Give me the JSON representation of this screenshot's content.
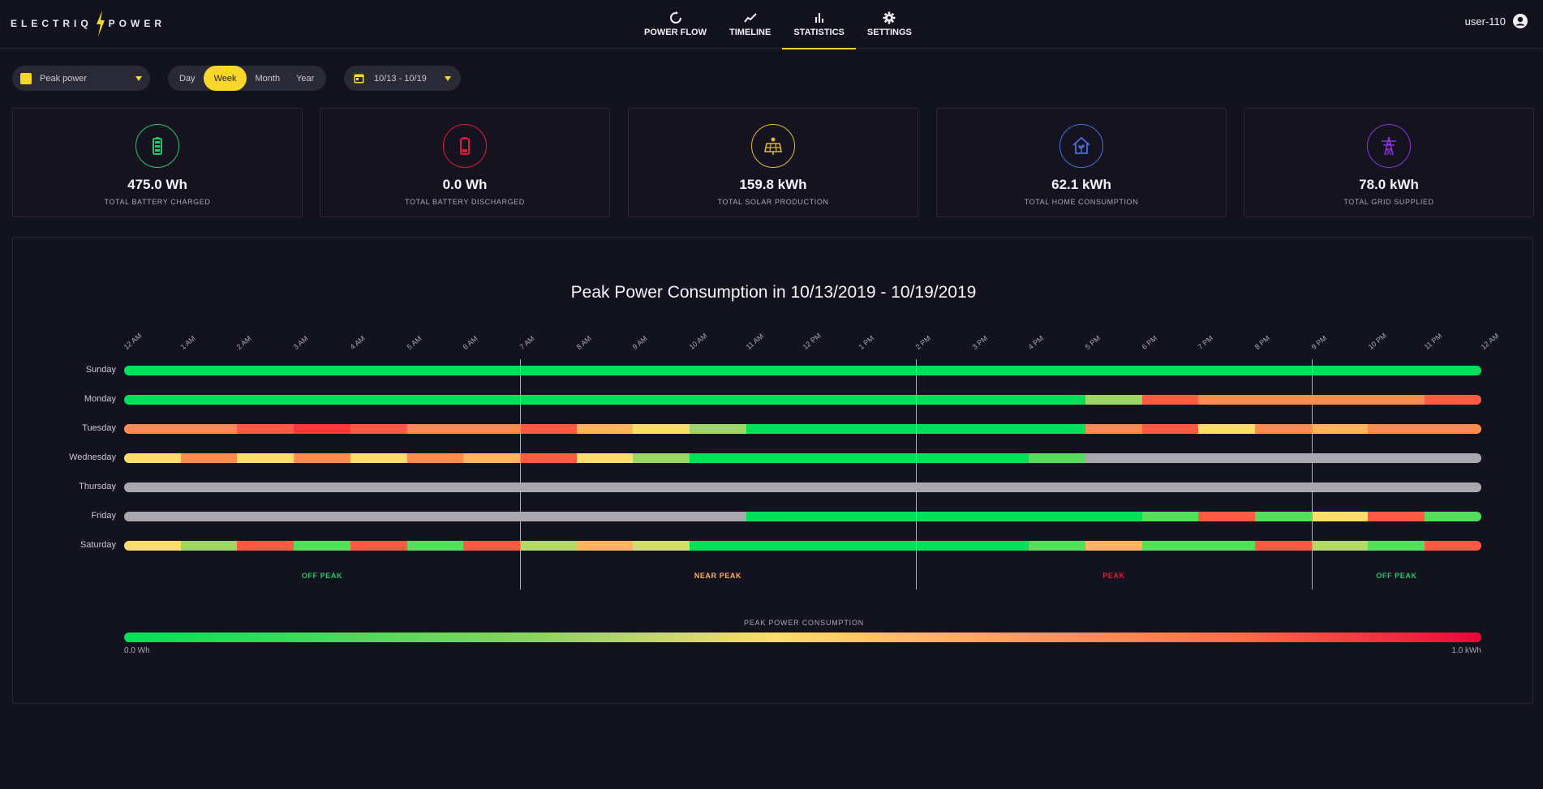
{
  "header": {
    "logo_text": [
      "ELECTRIQ",
      "POWER"
    ],
    "nav": [
      {
        "label": "POWER FLOW",
        "icon": "refresh-icon"
      },
      {
        "label": "TIMELINE",
        "icon": "trend-line-icon"
      },
      {
        "label": "STATISTICS",
        "icon": "bar-chart-icon",
        "active": true
      },
      {
        "label": "SETTINGS",
        "icon": "gear-icon"
      }
    ],
    "username": "user-110"
  },
  "controls": {
    "metric": "Peak power",
    "periods": [
      "Day",
      "Week",
      "Month",
      "Year"
    ],
    "active_period": "Week",
    "date_range": "10/13 - 10/19"
  },
  "stats": [
    {
      "value": "475.0 Wh",
      "label": "TOTAL BATTERY CHARGED",
      "icon": "battery-charged-icon",
      "color": "#22c767"
    },
    {
      "value": "0.0 Wh",
      "label": "TOTAL BATTERY DISCHARGED",
      "icon": "battery-discharged-icon",
      "color": "#e8163a"
    },
    {
      "value": "159.8 kWh",
      "label": "TOTAL SOLAR PRODUCTION",
      "icon": "solar-panel-icon",
      "color": "#e0b930"
    },
    {
      "value": "62.1 kWh",
      "label": "TOTAL HOME CONSUMPTION",
      "icon": "home-icon",
      "color": "#4a6de0"
    },
    {
      "value": "78.0 kWh",
      "label": "TOTAL GRID SUPPLIED",
      "icon": "power-tower-icon",
      "color": "#8a34d6"
    }
  ],
  "chart_data": {
    "type": "heatmap",
    "title": "Peak Power Consumption in 10/13/2019 - 10/19/2019",
    "x_labels": [
      "12 AM",
      "1 AM",
      "2 AM",
      "3 AM",
      "4 AM",
      "5 AM",
      "6 AM",
      "7 AM",
      "8 AM",
      "9 AM",
      "10 AM",
      "11 AM",
      "12 PM",
      "1 PM",
      "2 PM",
      "3 PM",
      "4 PM",
      "5 PM",
      "6 PM",
      "7 PM",
      "8 PM",
      "9 PM",
      "10 PM",
      "11 PM",
      "12 AM"
    ],
    "rows": [
      {
        "day": "Sunday",
        "cells": [
          "g",
          "g",
          "g",
          "g",
          "g",
          "g",
          "g",
          "g",
          "g",
          "g",
          "g",
          "g",
          "g",
          "g",
          "g",
          "g",
          "g",
          "g",
          "g",
          "g",
          "g",
          "g",
          "g",
          "g"
        ]
      },
      {
        "day": "Monday",
        "cells": [
          "g",
          "g",
          "g",
          "g",
          "g",
          "g",
          "g",
          "g",
          "g",
          "g",
          "g",
          "g",
          "g",
          "g",
          "g",
          "g",
          "g",
          "y",
          "r",
          "o",
          "o",
          "o",
          "o",
          "r"
        ]
      },
      {
        "day": "Tuesday",
        "cells": [
          "o",
          "o",
          "r",
          "rr",
          "r",
          "o",
          "o",
          "r",
          "lo",
          "ly",
          "y",
          "g",
          "g",
          "g",
          "g",
          "g",
          "g",
          "o",
          "r",
          "ly",
          "o",
          "lo",
          "o",
          "o"
        ]
      },
      {
        "day": "Wednesday",
        "cells": [
          "ly",
          "o",
          "ly",
          "o",
          "ly",
          "o",
          "lo",
          "r",
          "ly",
          "y",
          "g",
          "g",
          "g",
          "g",
          "g",
          "g",
          "lg",
          "x",
          "x",
          "x",
          "x",
          "x",
          "x",
          "x"
        ]
      },
      {
        "day": "Thursday",
        "cells": [
          "x",
          "x",
          "x",
          "x",
          "x",
          "x",
          "x",
          "x",
          "x",
          "x",
          "x",
          "x",
          "x",
          "x",
          "x",
          "x",
          "x",
          "x",
          "x",
          "x",
          "x",
          "x",
          "x",
          "x"
        ]
      },
      {
        "day": "Friday",
        "cells": [
          "x",
          "x",
          "x",
          "x",
          "x",
          "x",
          "x",
          "x",
          "x",
          "x",
          "x",
          "g",
          "g",
          "g",
          "g",
          "g",
          "g",
          "g",
          "lg",
          "r",
          "lg",
          "ly",
          "r",
          "lg"
        ]
      },
      {
        "day": "Saturday",
        "cells": [
          "ly",
          "y",
          "r",
          "lg",
          "r",
          "lg",
          "r",
          "yg",
          "lo",
          "yy",
          "g",
          "g",
          "g",
          "g",
          "g",
          "g",
          "lg",
          "lo",
          "lg",
          "lg",
          "r",
          "yg",
          "lg",
          "r"
        ]
      }
    ],
    "legend": {
      "title": "PEAK POWER CONSUMPTION",
      "min": "0.0 Wh",
      "max": "1.0 kWh"
    },
    "zones": [
      {
        "label": "OFF PEAK",
        "color": "#22c767"
      },
      {
        "label": "NEAR PEAK",
        "color": "#ffae5a"
      },
      {
        "label": "PEAK",
        "color": "#e8163a"
      },
      {
        "label": "OFF PEAK",
        "color": "#22c767"
      }
    ],
    "zone_boundaries_hours": [
      7,
      14,
      21
    ],
    "cell_colors": {
      "g": "#00e05a",
      "lg": "#55dd5e",
      "y": "#9ed665",
      "yg": "#b3d96a",
      "yy": "#d5dc72",
      "ly": "#fddd6c",
      "lo": "#ffb45d",
      "o": "#ff8c4f",
      "r": "#ff5a44",
      "rr": "#f93838",
      "x": "#a8a8ae"
    }
  }
}
